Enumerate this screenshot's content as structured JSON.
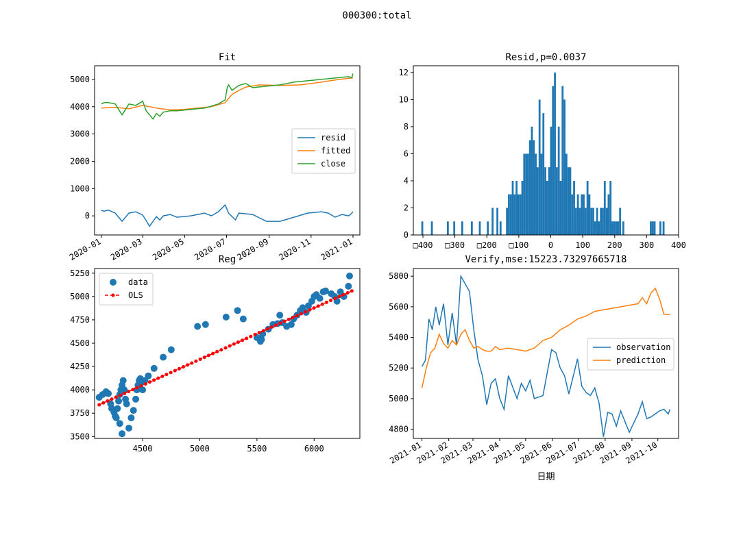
{
  "suptitle": "000300:total",
  "colors": {
    "c0": "#1f77b4",
    "c1": "#ff7f0e",
    "c2": "#2ca02c",
    "red": "#ff0000"
  },
  "chart_data": [
    {
      "id": "fit",
      "type": "line",
      "title": "Fit",
      "x_tick_labels": [
        "2020-01",
        "2020-03",
        "2020-05",
        "2020-07",
        "2020-09",
        "2020-11",
        "2021-01"
      ],
      "y_ticks": [
        0,
        1000,
        2000,
        3000,
        4000,
        5000
      ],
      "ylim": [
        -700,
        5500
      ],
      "xlim_days": [
        -10,
        376
      ],
      "legend_position": "center-right",
      "series": [
        {
          "name": "resid",
          "color": "#1f77b4",
          "x": [
            0,
            4,
            10,
            20,
            30,
            40,
            50,
            60,
            70,
            80,
            85,
            90,
            100,
            110,
            130,
            150,
            160,
            170,
            180,
            185,
            195,
            200,
            220,
            240,
            260,
            280,
            300,
            320,
            330,
            340,
            350,
            360,
            366
          ],
          "y": [
            200,
            170,
            210,
            100,
            -200,
            100,
            150,
            30,
            -380,
            -30,
            -150,
            0,
            50,
            -50,
            0,
            100,
            0,
            150,
            400,
            100,
            -150,
            100,
            50,
            -200,
            -200,
            -50,
            100,
            150,
            100,
            -50,
            50,
            0,
            150
          ]
        },
        {
          "name": "fitted",
          "color": "#ff7f0e",
          "x": [
            0,
            20,
            40,
            60,
            80,
            100,
            120,
            140,
            160,
            180,
            190,
            200,
            210,
            230,
            260,
            290,
            320,
            340,
            366
          ],
          "y": [
            3950,
            3980,
            3920,
            4050,
            3950,
            3880,
            3900,
            3950,
            4000,
            4150,
            4450,
            4600,
            4720,
            4800,
            4780,
            4800,
            4900,
            4980,
            5060
          ]
        },
        {
          "name": "close",
          "color": "#2ca02c",
          "x": [
            0,
            4,
            10,
            20,
            30,
            40,
            50,
            60,
            65,
            70,
            75,
            80,
            85,
            90,
            100,
            110,
            130,
            150,
            170,
            180,
            183,
            185,
            190,
            200,
            210,
            220,
            240,
            260,
            280,
            300,
            320,
            340,
            360,
            364,
            366
          ],
          "y": [
            4100,
            4150,
            4150,
            4100,
            3700,
            4100,
            4050,
            4200,
            3850,
            3700,
            3550,
            3750,
            3650,
            3800,
            3850,
            3850,
            3900,
            3950,
            4100,
            4250,
            4700,
            4800,
            4600,
            4780,
            4850,
            4700,
            4750,
            4800,
            4900,
            4950,
            5000,
            5050,
            5100,
            5050,
            5211
          ]
        }
      ]
    },
    {
      "id": "resid_hist",
      "type": "bar",
      "title": "Resid,p=0.0037",
      "x_tick_labels": [
        "□400",
        "□300",
        "□200",
        "□100",
        "0",
        "100",
        "200",
        "300",
        "400"
      ],
      "x_ticks": [
        -400,
        -300,
        -200,
        -100,
        0,
        100,
        200,
        300,
        400
      ],
      "y_ticks": [
        0,
        2,
        4,
        6,
        8,
        10,
        12
      ],
      "xlim": [
        -430,
        400
      ],
      "ylim": [
        0,
        12.5
      ],
      "bin_width": 6,
      "color": "#1f77b4",
      "bin_starts": [
        -405,
        -375,
        -325,
        -305,
        -280,
        -250,
        -225,
        -200,
        -185,
        -170,
        -160,
        -140,
        -134,
        -128,
        -122,
        -116,
        -110,
        -104,
        -98,
        -92,
        -86,
        -80,
        -74,
        -68,
        -62,
        -56,
        -50,
        -44,
        -38,
        -32,
        -26,
        -20,
        -14,
        -8,
        -2,
        4,
        10,
        16,
        22,
        28,
        34,
        40,
        46,
        52,
        58,
        64,
        70,
        76,
        82,
        88,
        94,
        100,
        106,
        112,
        118,
        124,
        130,
        136,
        142,
        148,
        154,
        160,
        166,
        172,
        178,
        184,
        190,
        196,
        202,
        208,
        214,
        224,
        310,
        316,
        322,
        340,
        350
      ],
      "counts": [
        1,
        1,
        1,
        1,
        1,
        1,
        1,
        1,
        2,
        2,
        1,
        2,
        3,
        3,
        4,
        3,
        4,
        3,
        3,
        4,
        6,
        6,
        6,
        7,
        8,
        7,
        6,
        5,
        10,
        6,
        9,
        5,
        4,
        5,
        8,
        11,
        12,
        5,
        8,
        4,
        11,
        10,
        6,
        5,
        5,
        3,
        4,
        2,
        3,
        2,
        3,
        3,
        2,
        4,
        3,
        2,
        2,
        1,
        2,
        1,
        2,
        2,
        4,
        2,
        3,
        4,
        1,
        1,
        1,
        1,
        2,
        1,
        1,
        1,
        1,
        1,
        1
      ]
    },
    {
      "id": "reg",
      "type": "scatter",
      "title": "Reg",
      "x_ticks": [
        4500,
        5000,
        5500,
        6000
      ],
      "x_tick_labels": [
        "4500",
        "5000",
        "5500",
        "6000"
      ],
      "y_ticks": [
        3500,
        3750,
        4000,
        4250,
        4500,
        4750,
        5000,
        5250
      ],
      "xlim": [
        4080,
        6400
      ],
      "ylim": [
        3480,
        5300
      ],
      "legend_position": "upper-left",
      "series": [
        {
          "name": "data",
          "color": "#1f77b4",
          "points": [
            [
              4120,
              3920
            ],
            [
              4150,
              3950
            ],
            [
              4180,
              3980
            ],
            [
              4200,
              3960
            ],
            [
              4220,
              3850
            ],
            [
              4230,
              3800
            ],
            [
              4250,
              3760
            ],
            [
              4260,
              3720
            ],
            [
              4270,
              3700
            ],
            [
              4280,
              3800
            ],
            [
              4290,
              3880
            ],
            [
              4300,
              3950
            ],
            [
              4310,
              4000
            ],
            [
              4320,
              4050
            ],
            [
              4330,
              4100
            ],
            [
              4340,
              4000
            ],
            [
              4350,
              3900
            ],
            [
              4360,
              3850
            ],
            [
              4300,
              3640
            ],
            [
              4320,
              3530
            ],
            [
              4380,
              3590
            ],
            [
              4400,
              3700
            ],
            [
              4420,
              3780
            ],
            [
              4440,
              3900
            ],
            [
              4450,
              4000
            ],
            [
              4460,
              4050
            ],
            [
              4470,
              4100
            ],
            [
              4480,
              4120
            ],
            [
              4490,
              4080
            ],
            [
              4500,
              4000
            ],
            [
              4520,
              4100
            ],
            [
              4550,
              4150
            ],
            [
              4600,
              4230
            ],
            [
              4680,
              4350
            ],
            [
              4750,
              4430
            ],
            [
              4980,
              4680
            ],
            [
              5050,
              4700
            ],
            [
              5230,
              4780
            ],
            [
              5330,
              4850
            ],
            [
              5380,
              4760
            ],
            [
              5500,
              4560
            ],
            [
              5530,
              4520
            ],
            [
              5540,
              4540
            ],
            [
              5550,
              4600
            ],
            [
              5600,
              4650
            ],
            [
              5640,
              4700
            ],
            [
              5680,
              4710
            ],
            [
              5700,
              4800
            ],
            [
              5720,
              4720
            ],
            [
              5760,
              4680
            ],
            [
              5800,
              4700
            ],
            [
              5820,
              4760
            ],
            [
              5850,
              4800
            ],
            [
              5880,
              4850
            ],
            [
              5900,
              4880
            ],
            [
              5930,
              4830
            ],
            [
              5950,
              4900
            ],
            [
              5980,
              4950
            ],
            [
              6000,
              5000
            ],
            [
              6020,
              5020
            ],
            [
              6050,
              4980
            ],
            [
              6080,
              5050
            ],
            [
              6100,
              5060
            ],
            [
              6150,
              5030
            ],
            [
              6180,
              5000
            ],
            [
              6200,
              4950
            ],
            [
              6230,
              5050
            ],
            [
              6260,
              5000
            ],
            [
              6300,
              5110
            ],
            [
              6310,
              5220
            ]
          ]
        },
        {
          "name": "OLS",
          "color": "#ff0000",
          "x": [
            4120,
            6330
          ],
          "y": [
            3840,
            5060
          ]
        }
      ]
    },
    {
      "id": "verify",
      "type": "line",
      "title": "Verify,mse:15223.73297665718",
      "xlabel": "日期",
      "x_tick_labels": [
        "2021-01",
        "2021-02",
        "2021-03",
        "2021-04",
        "2021-05",
        "2021-06",
        "2021-07",
        "2021-08",
        "2021-09",
        "2021-10"
      ],
      "y_ticks": [
        4800,
        5000,
        5200,
        5400,
        5600,
        5800
      ],
      "ylim": [
        4740,
        5850
      ],
      "xlim_days": [
        -10,
        297
      ],
      "legend_position": "center-right",
      "series": [
        {
          "name": "observation",
          "color": "#1f77b4",
          "x": [
            0,
            4,
            8,
            12,
            16,
            20,
            25,
            30,
            35,
            40,
            45,
            50,
            55,
            60,
            65,
            70,
            75,
            80,
            85,
            90,
            95,
            100,
            110,
            115,
            120,
            125,
            130,
            140,
            150,
            155,
            160,
            165,
            170,
            180,
            185,
            190,
            195,
            200,
            205,
            210,
            215,
            220,
            225,
            230,
            240,
            250,
            255,
            260,
            265,
            270,
            275,
            280,
            285,
            287
          ],
          "y": [
            5210,
            5250,
            5520,
            5450,
            5600,
            5480,
            5620,
            5350,
            5560,
            5350,
            5800,
            5750,
            5700,
            5450,
            5250,
            5150,
            4960,
            5100,
            5130,
            5000,
            4930,
            5150,
            5000,
            5100,
            5050,
            5120,
            5000,
            5020,
            5320,
            5300,
            5200,
            5150,
            5030,
            5260,
            5080,
            5040,
            5020,
            5070,
            4970,
            4750,
            4910,
            4900,
            4820,
            4920,
            4780,
            4900,
            4980,
            4870,
            4880,
            4900,
            4920,
            4930,
            4900,
            4930
          ]
        },
        {
          "name": "prediction",
          "color": "#ff7f0e",
          "x": [
            0,
            5,
            10,
            15,
            20,
            25,
            30,
            35,
            40,
            45,
            50,
            55,
            60,
            65,
            70,
            75,
            80,
            85,
            90,
            100,
            110,
            120,
            130,
            140,
            150,
            160,
            170,
            180,
            190,
            200,
            210,
            220,
            230,
            240,
            250,
            255,
            260,
            265,
            270,
            275,
            280,
            287
          ],
          "y": [
            5070,
            5200,
            5300,
            5330,
            5420,
            5360,
            5330,
            5380,
            5350,
            5420,
            5450,
            5380,
            5330,
            5340,
            5320,
            5310,
            5310,
            5340,
            5320,
            5330,
            5320,
            5310,
            5330,
            5380,
            5400,
            5450,
            5480,
            5520,
            5540,
            5570,
            5580,
            5590,
            5600,
            5610,
            5620,
            5660,
            5620,
            5690,
            5720,
            5650,
            5550,
            5550
          ]
        }
      ]
    }
  ]
}
